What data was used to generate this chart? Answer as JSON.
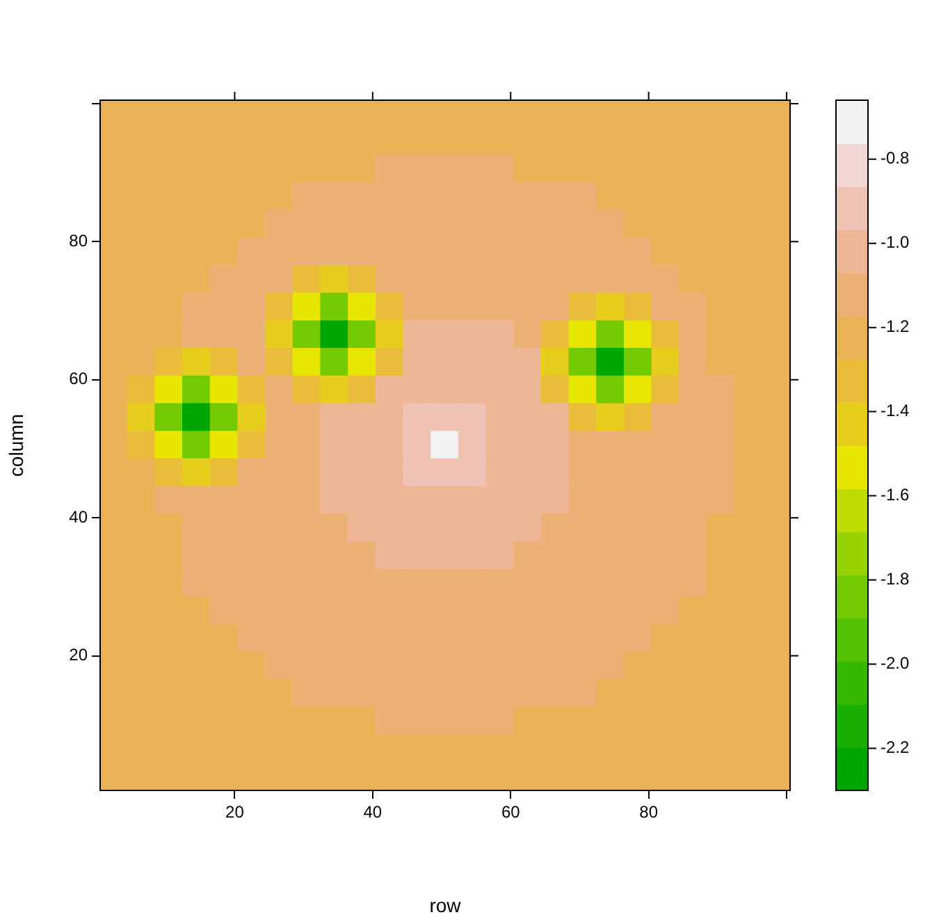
{
  "chart_data": {
    "type": "heatmap",
    "xlabel": "row",
    "ylabel": "column",
    "x": [
      2.5,
      6.5,
      10.5,
      14.5,
      18.5,
      22.5,
      26.5,
      30.5,
      34.5,
      38.5,
      42.5,
      46.5,
      50.5,
      54.5,
      58.5,
      62.5,
      66.5,
      70.5,
      74.5,
      78.5,
      82.5,
      86.5,
      90.5,
      94.5,
      98.5
    ],
    "y": [
      98.5,
      94.5,
      90.5,
      86.5,
      82.5,
      78.5,
      74.5,
      70.5,
      66.5,
      62.5,
      58.5,
      54.5,
      50.5,
      46.5,
      42.5,
      38.5,
      34.5,
      30.5,
      26.5,
      22.5,
      18.5,
      14.5,
      10.5,
      6.5,
      2.5
    ],
    "xlim": [
      0.5,
      100.5
    ],
    "ylim": [
      0.5,
      100.5
    ],
    "xticks": [
      20,
      40,
      60,
      80,
      {
        "value": 100,
        "label": null
      }
    ],
    "yticks": [
      20,
      40,
      60,
      80,
      {
        "value": 100,
        "label": null
      }
    ],
    "clim": [
      -2.3,
      -0.66
    ],
    "cticks": [
      -2.2,
      {
        "value": -2,
        "label": "-2.0"
      },
      -1.8,
      -1.6,
      -1.4,
      -1.2,
      {
        "value": -1,
        "label": "-1.0"
      },
      -0.8
    ],
    "cells": [
      [
        -1.22,
        -1.22,
        -1.22,
        -1.22,
        -1.22,
        -1.22,
        -1.22,
        -1.22,
        -1.22,
        -1.22,
        -1.22,
        -1.22,
        -1.22,
        -1.22,
        -1.22,
        -1.22,
        -1.22,
        -1.22,
        -1.22,
        -1.22,
        -1.22,
        -1.22,
        -1.22,
        -1.22,
        -1.22
      ],
      [
        -1.22,
        -1.22,
        -1.22,
        -1.22,
        -1.22,
        -1.22,
        -1.22,
        -1.22,
        -1.22,
        -1.22,
        -1.22,
        -1.22,
        -1.22,
        -1.22,
        -1.22,
        -1.22,
        -1.22,
        -1.22,
        -1.22,
        -1.22,
        -1.22,
        -1.22,
        -1.22,
        -1.22,
        -1.22
      ],
      [
        -1.22,
        -1.22,
        -1.22,
        -1.22,
        -1.22,
        -1.22,
        -1.22,
        -1.22,
        -1.22,
        -1.22,
        -1.12,
        -1.12,
        -1.12,
        -1.12,
        -1.12,
        -1.22,
        -1.22,
        -1.22,
        -1.22,
        -1.22,
        -1.22,
        -1.22,
        -1.22,
        -1.22,
        -1.22
      ],
      [
        -1.22,
        -1.22,
        -1.22,
        -1.22,
        -1.22,
        -1.22,
        -1.22,
        -1.12,
        -1.12,
        -1.12,
        -1.12,
        -1.12,
        -1.12,
        -1.12,
        -1.12,
        -1.12,
        -1.12,
        -1.12,
        -1.22,
        -1.22,
        -1.22,
        -1.22,
        -1.22,
        -1.22,
        -1.22
      ],
      [
        -1.22,
        -1.22,
        -1.22,
        -1.22,
        -1.22,
        -1.22,
        -1.12,
        -1.12,
        -1.12,
        -1.12,
        -1.12,
        -1.12,
        -1.12,
        -1.12,
        -1.12,
        -1.12,
        -1.12,
        -1.12,
        -1.12,
        -1.22,
        -1.22,
        -1.22,
        -1.22,
        -1.22,
        -1.22
      ],
      [
        -1.22,
        -1.22,
        -1.22,
        -1.22,
        -1.22,
        -1.12,
        -1.12,
        -1.12,
        -1.12,
        -1.12,
        -1.12,
        -1.12,
        -1.12,
        -1.12,
        -1.12,
        -1.12,
        -1.12,
        -1.12,
        -1.12,
        -1.12,
        -1.22,
        -1.22,
        -1.22,
        -1.22,
        -1.22
      ],
      [
        -1.22,
        -1.22,
        -1.22,
        -1.22,
        -1.12,
        -1.12,
        -1.12,
        -1.3,
        -1.4,
        -1.3,
        -1.12,
        -1.12,
        -1.12,
        -1.12,
        -1.12,
        -1.12,
        -1.12,
        -1.12,
        -1.12,
        -1.12,
        -1.12,
        -1.22,
        -1.22,
        -1.22,
        -1.22
      ],
      [
        -1.22,
        -1.22,
        -1.22,
        -1.12,
        -1.12,
        -1.12,
        -1.3,
        -1.55,
        -1.8,
        -1.55,
        -1.3,
        -1.12,
        -1.12,
        -1.12,
        -1.12,
        -1.12,
        -1.12,
        -1.3,
        -1.4,
        -1.3,
        -1.12,
        -1.12,
        -1.22,
        -1.22,
        -1.22
      ],
      [
        -1.22,
        -1.22,
        -1.22,
        -1.12,
        -1.12,
        -1.12,
        -1.4,
        -1.8,
        -2.22,
        -1.8,
        -1.4,
        -1.02,
        -1.02,
        -1.02,
        -1.02,
        -1.12,
        -1.3,
        -1.55,
        -1.8,
        -1.55,
        -1.3,
        -1.12,
        -1.22,
        -1.22,
        -1.22
      ],
      [
        -1.22,
        -1.22,
        -1.3,
        -1.4,
        -1.3,
        -1.12,
        -1.3,
        -1.55,
        -1.8,
        -1.55,
        -1.3,
        -1.02,
        -1.02,
        -1.02,
        -1.02,
        -1.02,
        -1.4,
        -1.8,
        -2.22,
        -1.8,
        -1.4,
        -1.12,
        -1.22,
        -1.22,
        -1.22
      ],
      [
        -1.22,
        -1.3,
        -1.55,
        -1.8,
        -1.55,
        -1.3,
        -1.12,
        -1.3,
        -1.4,
        -1.3,
        -1.02,
        -1.02,
        -1.02,
        -1.02,
        -1.02,
        -1.02,
        -1.3,
        -1.55,
        -1.8,
        -1.55,
        -1.3,
        -1.12,
        -1.12,
        -1.22,
        -1.22
      ],
      [
        -1.22,
        -1.4,
        -1.8,
        -2.22,
        -1.8,
        -1.4,
        -1.12,
        -1.12,
        -1.02,
        -1.02,
        -1.02,
        -0.92,
        -0.92,
        -0.92,
        -1.02,
        -1.02,
        -1.02,
        -1.3,
        -1.4,
        -1.3,
        -1.12,
        -1.12,
        -1.12,
        -1.22,
        -1.22
      ],
      [
        -1.22,
        -1.3,
        -1.55,
        -1.8,
        -1.55,
        -1.3,
        -1.12,
        -1.12,
        -1.02,
        -1.02,
        -1.02,
        -0.92,
        -0.71,
        -0.92,
        -1.02,
        -1.02,
        -1.02,
        -1.12,
        -1.12,
        -1.12,
        -1.12,
        -1.12,
        -1.12,
        -1.22,
        -1.22
      ],
      [
        -1.22,
        -1.22,
        -1.3,
        -1.4,
        -1.3,
        -1.12,
        -1.12,
        -1.12,
        -1.02,
        -1.02,
        -1.02,
        -0.92,
        -0.92,
        -0.92,
        -1.02,
        -1.02,
        -1.02,
        -1.12,
        -1.12,
        -1.12,
        -1.12,
        -1.12,
        -1.12,
        -1.22,
        -1.22
      ],
      [
        -1.22,
        -1.22,
        -1.12,
        -1.12,
        -1.12,
        -1.12,
        -1.12,
        -1.12,
        -1.02,
        -1.02,
        -1.02,
        -1.02,
        -1.02,
        -1.02,
        -1.02,
        -1.02,
        -1.02,
        -1.12,
        -1.12,
        -1.12,
        -1.12,
        -1.12,
        -1.12,
        -1.22,
        -1.22
      ],
      [
        -1.22,
        -1.22,
        -1.22,
        -1.12,
        -1.12,
        -1.12,
        -1.12,
        -1.12,
        -1.12,
        -1.02,
        -1.02,
        -1.02,
        -1.02,
        -1.02,
        -1.02,
        -1.02,
        -1.12,
        -1.12,
        -1.12,
        -1.12,
        -1.12,
        -1.12,
        -1.22,
        -1.22,
        -1.22
      ],
      [
        -1.22,
        -1.22,
        -1.22,
        -1.12,
        -1.12,
        -1.12,
        -1.12,
        -1.12,
        -1.12,
        -1.12,
        -1.02,
        -1.02,
        -1.02,
        -1.02,
        -1.02,
        -1.12,
        -1.12,
        -1.12,
        -1.12,
        -1.12,
        -1.12,
        -1.12,
        -1.22,
        -1.22,
        -1.22
      ],
      [
        -1.22,
        -1.22,
        -1.22,
        -1.12,
        -1.12,
        -1.12,
        -1.12,
        -1.12,
        -1.12,
        -1.12,
        -1.12,
        -1.12,
        -1.12,
        -1.12,
        -1.12,
        -1.12,
        -1.12,
        -1.12,
        -1.12,
        -1.12,
        -1.12,
        -1.12,
        -1.22,
        -1.22,
        -1.22
      ],
      [
        -1.22,
        -1.22,
        -1.22,
        -1.22,
        -1.12,
        -1.12,
        -1.12,
        -1.12,
        -1.12,
        -1.12,
        -1.12,
        -1.12,
        -1.12,
        -1.12,
        -1.12,
        -1.12,
        -1.12,
        -1.12,
        -1.12,
        -1.12,
        -1.12,
        -1.22,
        -1.22,
        -1.22,
        -1.22
      ],
      [
        -1.22,
        -1.22,
        -1.22,
        -1.22,
        -1.22,
        -1.12,
        -1.12,
        -1.12,
        -1.12,
        -1.12,
        -1.12,
        -1.12,
        -1.12,
        -1.12,
        -1.12,
        -1.12,
        -1.12,
        -1.12,
        -1.12,
        -1.12,
        -1.22,
        -1.22,
        -1.22,
        -1.22,
        -1.22
      ],
      [
        -1.22,
        -1.22,
        -1.22,
        -1.22,
        -1.22,
        -1.22,
        -1.12,
        -1.12,
        -1.12,
        -1.12,
        -1.12,
        -1.12,
        -1.12,
        -1.12,
        -1.12,
        -1.12,
        -1.12,
        -1.12,
        -1.12,
        -1.22,
        -1.22,
        -1.22,
        -1.22,
        -1.22,
        -1.22
      ],
      [
        -1.22,
        -1.22,
        -1.22,
        -1.22,
        -1.22,
        -1.22,
        -1.22,
        -1.12,
        -1.12,
        -1.12,
        -1.12,
        -1.12,
        -1.12,
        -1.12,
        -1.12,
        -1.12,
        -1.12,
        -1.12,
        -1.22,
        -1.22,
        -1.22,
        -1.22,
        -1.22,
        -1.22,
        -1.22
      ],
      [
        -1.22,
        -1.22,
        -1.22,
        -1.22,
        -1.22,
        -1.22,
        -1.22,
        -1.22,
        -1.22,
        -1.22,
        -1.12,
        -1.12,
        -1.12,
        -1.12,
        -1.12,
        -1.22,
        -1.22,
        -1.22,
        -1.22,
        -1.22,
        -1.22,
        -1.22,
        -1.22,
        -1.22,
        -1.22
      ],
      [
        -1.22,
        -1.22,
        -1.22,
        -1.22,
        -1.22,
        -1.22,
        -1.22,
        -1.22,
        -1.22,
        -1.22,
        -1.22,
        -1.22,
        -1.22,
        -1.22,
        -1.22,
        -1.22,
        -1.22,
        -1.22,
        -1.22,
        -1.22,
        -1.22,
        -1.22,
        -1.22,
        -1.22,
        -1.22
      ],
      [
        -1.22,
        -1.22,
        -1.22,
        -1.22,
        -1.22,
        -1.22,
        -1.22,
        -1.22,
        -1.22,
        -1.22,
        -1.22,
        -1.22,
        -1.22,
        -1.22,
        -1.22,
        -1.22,
        -1.22,
        -1.22,
        -1.22,
        -1.22,
        -1.22,
        -1.22,
        -1.22,
        -1.22,
        -1.22
      ]
    ]
  }
}
